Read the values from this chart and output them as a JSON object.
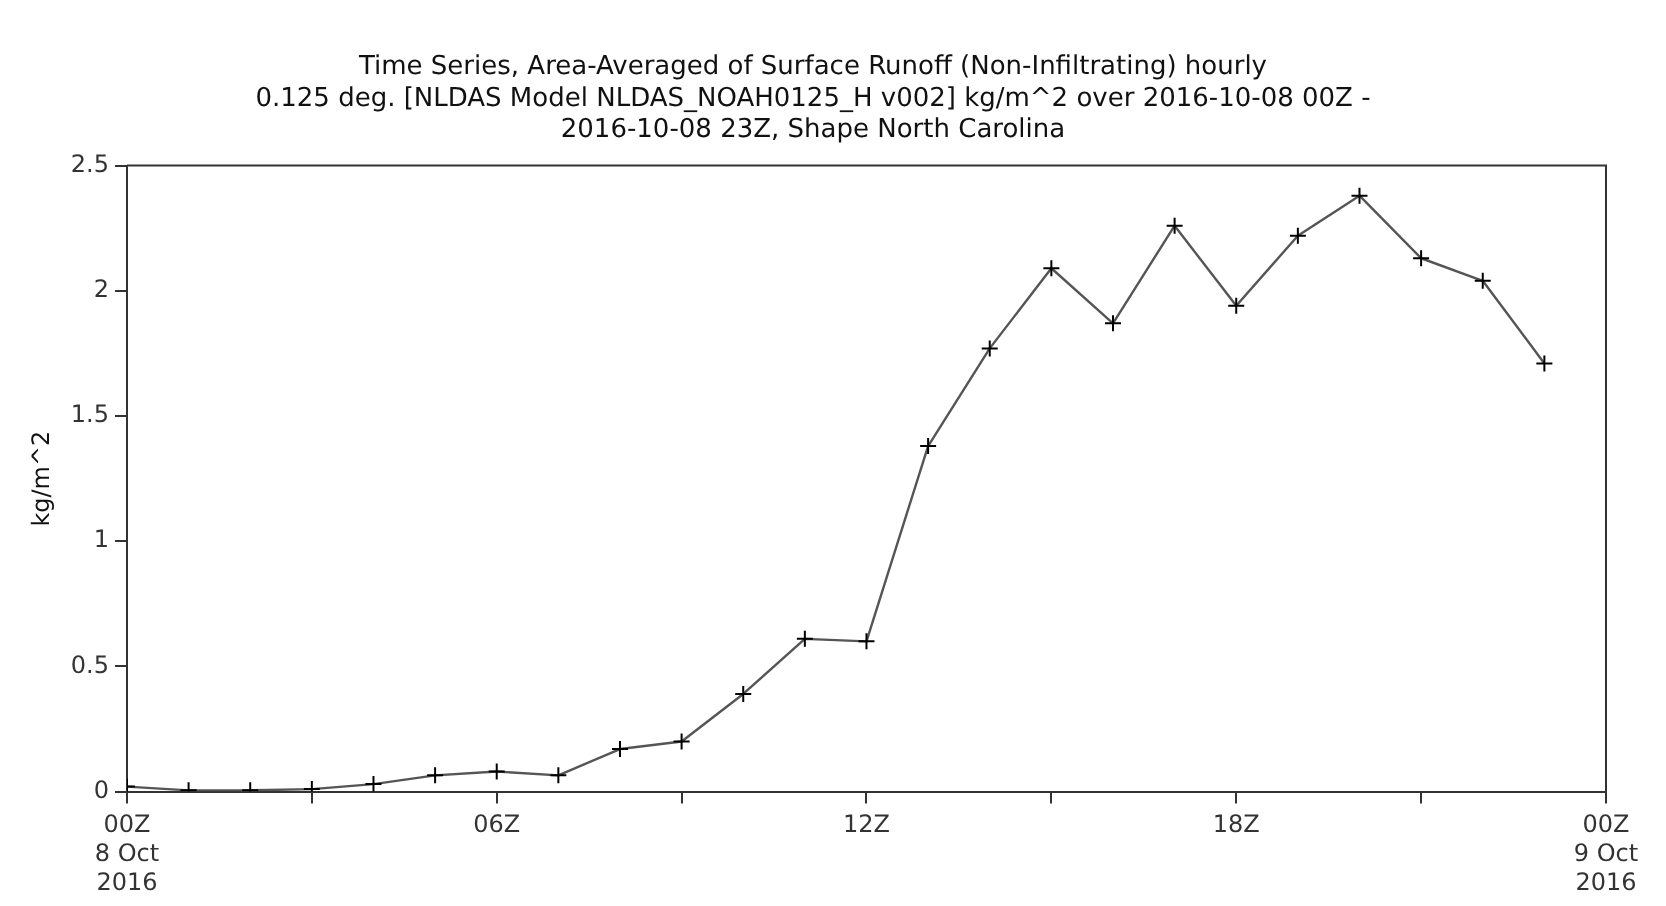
{
  "chart_data": {
    "type": "line",
    "title": "Time Series, Area-Averaged of Surface Runoff (Non-Infiltrating) hourly\n0.125 deg. [NLDAS Model NLDAS_NOAH0125_H v002] kg/m^2 over 2016-10-08 00Z -\n2016-10-08 23Z, Shape North Carolina",
    "ylabel": "kg/m^2",
    "x": [
      0,
      1,
      2,
      3,
      4,
      5,
      6,
      7,
      8,
      9,
      10,
      11,
      12,
      13,
      14,
      15,
      16,
      17,
      18,
      19,
      20,
      21,
      22,
      23
    ],
    "series": [
      {
        "color": "#555555",
        "values": [
          0.02,
          0.005,
          0.005,
          0.01,
          0.03,
          0.065,
          0.08,
          0.065,
          0.17,
          0.2,
          0.39,
          0.61,
          0.6,
          1.38,
          1.77,
          2.09,
          1.87,
          2.26,
          1.94,
          2.22,
          2.38,
          2.13,
          2.04,
          1.71
        ]
      }
    ],
    "xlim": [
      0,
      24
    ],
    "xticks": [
      {
        "value": 0,
        "label": "00Z\n8 Oct\n2016"
      },
      {
        "value": 3,
        "label": null
      },
      {
        "value": 6,
        "label": "06Z"
      },
      {
        "value": 9,
        "label": null
      },
      {
        "value": 12,
        "label": "12Z"
      },
      {
        "value": 15,
        "label": null
      },
      {
        "value": 18,
        "label": "18Z"
      },
      {
        "value": 21,
        "label": null
      },
      {
        "value": 24,
        "label": "00Z\n9 Oct\n2016"
      }
    ],
    "ylim": [
      0,
      2.5
    ],
    "yticks": [
      0,
      0.5,
      1,
      1.5,
      2,
      2.5
    ],
    "grid": false,
    "legend": false,
    "marker": "cross",
    "line_style": "solid"
  }
}
